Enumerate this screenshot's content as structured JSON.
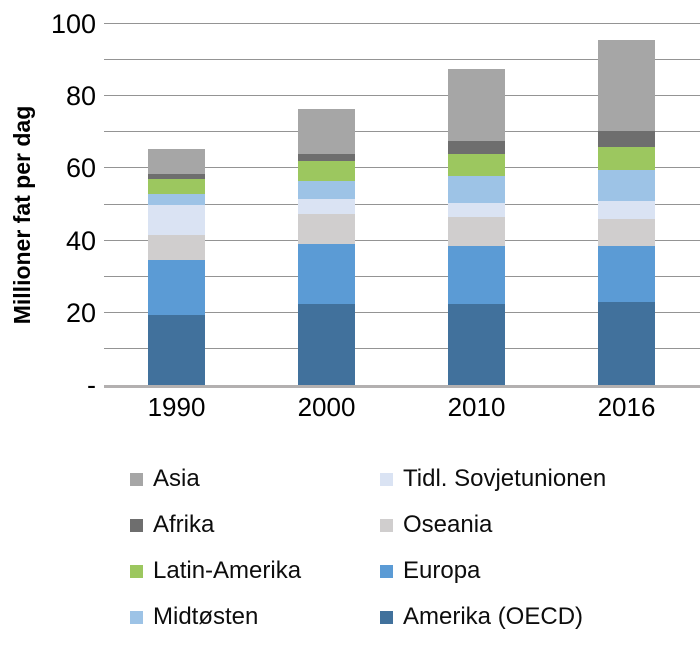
{
  "chart_data": {
    "type": "bar",
    "stacked": true,
    "title": "",
    "xlabel": "",
    "ylabel": "Millioner fat per dag",
    "ylim": [
      0,
      100
    ],
    "grid": true,
    "gridline_step": 10,
    "yticks": [
      {
        "value": 100,
        "label": "100"
      },
      {
        "value": 80,
        "label": "80"
      },
      {
        "value": 60,
        "label": "60"
      },
      {
        "value": 40,
        "label": "40"
      },
      {
        "value": 20,
        "label": "20"
      },
      {
        "value": 0,
        "label": "-"
      }
    ],
    "categories": [
      "1990",
      "2000",
      "2010",
      "2016"
    ],
    "series": [
      {
        "name": "Amerika (OECD)",
        "color": "#41719c",
        "values": [
          19.5,
          22.5,
          22.5,
          23.0
        ]
      },
      {
        "name": "Europa",
        "color": "#5b9bd5",
        "values": [
          15.0,
          16.5,
          16.0,
          15.5
        ]
      },
      {
        "name": "Oseania",
        "color": "#d0cece",
        "values": [
          7.0,
          8.5,
          8.0,
          7.5
        ]
      },
      {
        "name": "Tidl. Sovjetunionen",
        "color": "#dae3f3",
        "values": [
          8.5,
          4.0,
          4.0,
          5.0
        ]
      },
      {
        "name": "Midtøsten",
        "color": "#9dc3e6",
        "values": [
          3.0,
          5.0,
          7.5,
          8.5
        ]
      },
      {
        "name": "Latin-Amerika",
        "color": "#9cc75f",
        "values": [
          4.0,
          5.5,
          6.0,
          6.5
        ]
      },
      {
        "name": "Afrika",
        "color": "#6e6e6e",
        "values": [
          1.5,
          2.0,
          3.5,
          4.5
        ]
      },
      {
        "name": "Asia",
        "color": "#a6a6a6",
        "values": [
          7.0,
          12.5,
          20.0,
          25.0
        ]
      }
    ],
    "legend_position": "bottom",
    "legend_columns": [
      [
        {
          "label": "Asia",
          "color": "#a6a6a6"
        },
        {
          "label": "Afrika",
          "color": "#6e6e6e"
        },
        {
          "label": "Latin-Amerika",
          "color": "#9cc75f"
        },
        {
          "label": "Midtøsten",
          "color": "#9dc3e6"
        }
      ],
      [
        {
          "label": "Tidl. Sovjetunionen",
          "color": "#dae3f3"
        },
        {
          "label": "Oseania",
          "color": "#d0cece"
        },
        {
          "label": "Europa",
          "color": "#5b9bd5"
        },
        {
          "label": "Amerika (OECD)",
          "color": "#41719c"
        }
      ]
    ]
  },
  "layout_colors": {
    "gridline": "#949494",
    "axis_line": "#b3b0b0",
    "background": "#ffffff"
  }
}
